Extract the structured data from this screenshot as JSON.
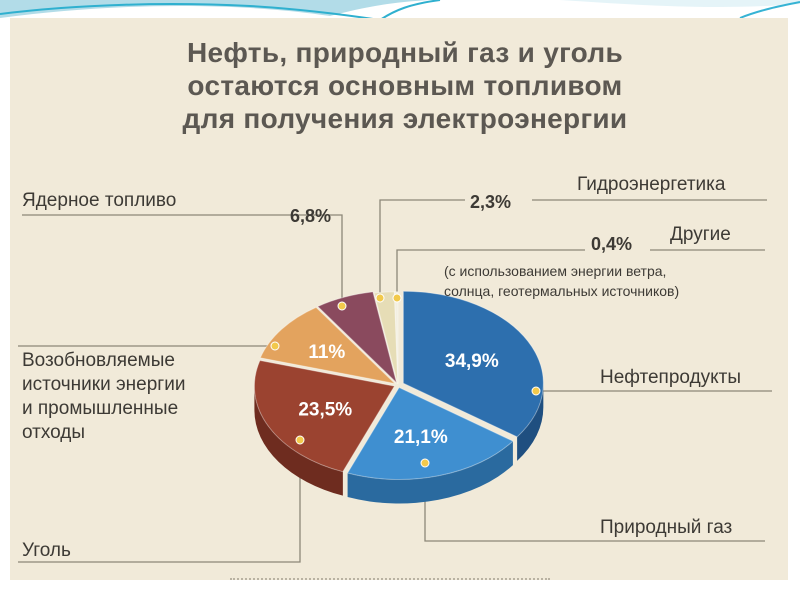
{
  "title_lines": [
    "Нефть, природный газ и уголь",
    "остаются основным топливом",
    "для получения электроэнергии"
  ],
  "chart_data": {
    "type": "pie",
    "title": "Нефть, природный газ и уголь остаются основным топливом для получения электроэнергии",
    "series": [
      {
        "name": "Нефтепродукты",
        "value": 34.9,
        "value_label": "34,9%",
        "color": "#2d6fae",
        "side": "#1f4f80"
      },
      {
        "name": "Природный газ",
        "value": 21.1,
        "value_label": "21,1%",
        "color": "#3f8fd0",
        "side": "#2a6a9f"
      },
      {
        "name": "Уголь",
        "value": 23.5,
        "value_label": "23,5%",
        "color": "#9b4330",
        "side": "#6e2c1f"
      },
      {
        "name": "Возобновляемые источники энергии и промышленные отходы",
        "value": 11,
        "value_label": "11%",
        "color": "#e3a35e",
        "side": "#b47a3d"
      },
      {
        "name": "Ядерное топливо",
        "value": 6.8,
        "value_label": "6,8%",
        "color": "#8a4a5e",
        "side": "#603241"
      },
      {
        "name": "Гидроэнергетика",
        "value": 2.3,
        "value_label": "2,3%",
        "color": "#e6ddb6",
        "side": "#bdb38d"
      },
      {
        "name": "Другие",
        "value": 0.4,
        "value_label": "0,4%",
        "color": "#f3efe2",
        "side": "#c9c3b0"
      }
    ],
    "annotations": {
      "others_note_line1": "(с использованием энергии ветра,",
      "others_note_line2": "солнца, геотермальных источников)"
    },
    "legend": "callout-labels"
  },
  "labels": {
    "oil": "Нефтепродукты",
    "gas": "Природный газ",
    "coal": "Уголь",
    "renew_line1": "Возобновляемые",
    "renew_line2": "источники энергии",
    "renew_line3": "и промышленные",
    "renew_line4": "отходы",
    "nuclear": "Ядерное топливо",
    "hydro": "Гидроэнергетика",
    "others": "Другие"
  },
  "colors": {
    "panel_bg": "#f1ead9",
    "title_text": "#5c5852",
    "callout_line": "#8c8779",
    "marker_fill": "#f2c94c"
  }
}
